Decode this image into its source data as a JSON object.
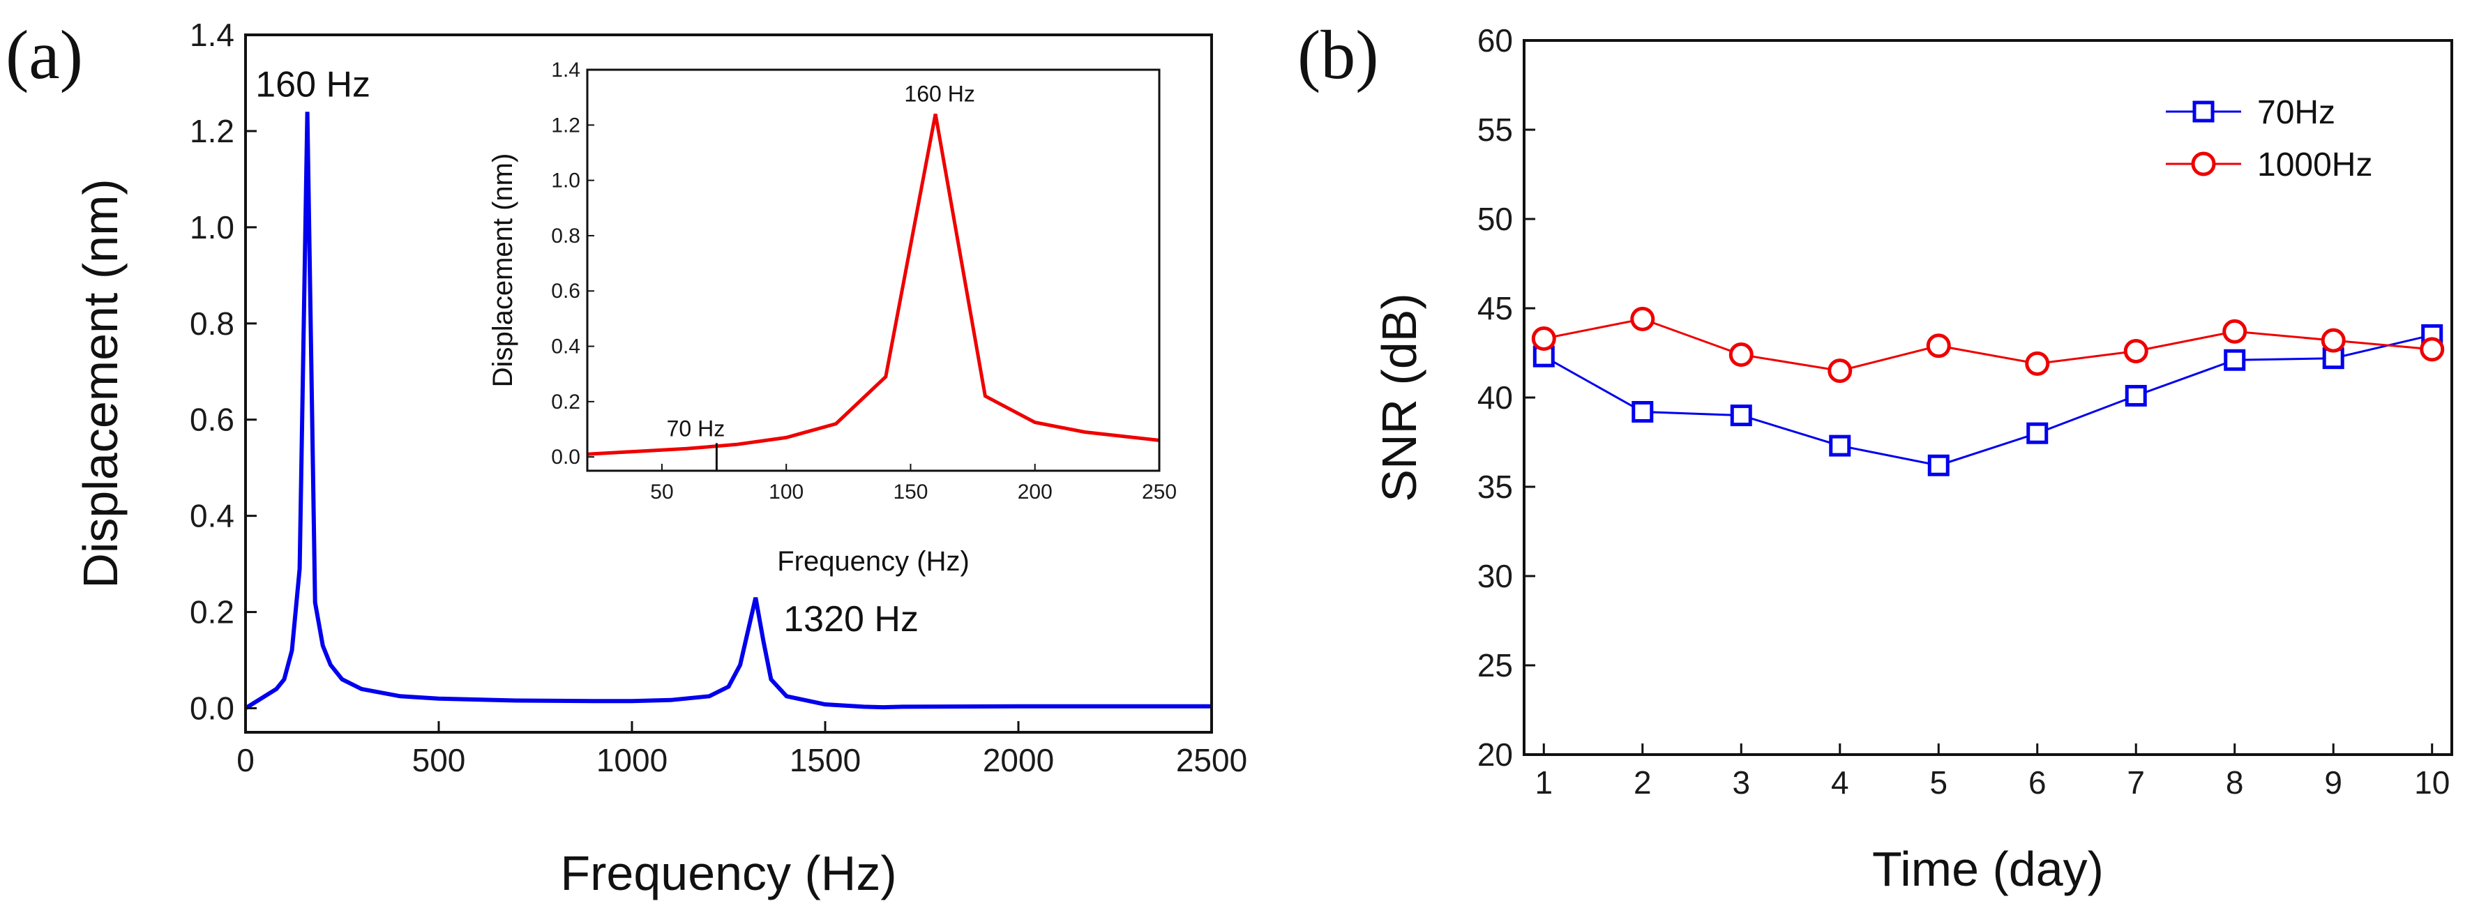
{
  "chart_data": [
    {
      "type": "line",
      "panel_label": "(a)",
      "xlabel": "Frequency (Hz)",
      "ylabel": "Displacement (nm)",
      "xlim": [
        0,
        2500
      ],
      "ylim": [
        -0.05,
        1.4
      ],
      "xticks": [
        0,
        500,
        1000,
        1500,
        2000,
        2500
      ],
      "yticks": [
        0.0,
        0.2,
        0.4,
        0.6,
        0.8,
        1.0,
        1.2,
        1.4
      ],
      "xtick_labels": [
        "0",
        "500",
        "1000",
        "1500",
        "2000",
        "2500"
      ],
      "ytick_labels": [
        "0.0",
        "0.2",
        "0.4",
        "0.6",
        "0.8",
        "1.0",
        "1.2",
        "1.4"
      ],
      "annotations": [
        {
          "text": "160 Hz",
          "x": 160,
          "y": 1.24
        },
        {
          "text": "1320 Hz",
          "x": 1320,
          "y": 0.23
        }
      ],
      "series": [
        {
          "name": "Displacement",
          "color": "#0000ee",
          "x": [
            0,
            20,
            40,
            60,
            80,
            100,
            120,
            140,
            160,
            180,
            200,
            220,
            250,
            300,
            400,
            500,
            700,
            900,
            1000,
            1100,
            1200,
            1250,
            1280,
            1300,
            1320,
            1340,
            1360,
            1400,
            1500,
            1600,
            1650,
            1700,
            2000,
            2500
          ],
          "y": [
            0.0,
            0.01,
            0.02,
            0.03,
            0.04,
            0.06,
            0.12,
            0.29,
            1.24,
            0.22,
            0.13,
            0.09,
            0.06,
            0.04,
            0.025,
            0.02,
            0.016,
            0.015,
            0.015,
            0.017,
            0.025,
            0.045,
            0.09,
            0.16,
            0.23,
            0.14,
            0.06,
            0.025,
            0.008,
            0.003,
            0.002,
            0.003,
            0.004,
            0.004
          ]
        }
      ],
      "inset": {
        "type": "line",
        "xlabel": "Frequency (Hz)",
        "ylabel": "Displacement (nm)",
        "xlim": [
          20,
          250
        ],
        "ylim": [
          -0.05,
          1.4
        ],
        "xticks": [
          50,
          100,
          150,
          200,
          250
        ],
        "yticks": [
          0.0,
          0.2,
          0.4,
          0.6,
          0.8,
          1.0,
          1.2,
          1.4
        ],
        "xtick_labels": [
          "50",
          "100",
          "150",
          "200",
          "250"
        ],
        "ytick_labels": [
          "0.0",
          "0.2",
          "0.4",
          "0.6",
          "0.8",
          "1.0",
          "1.2",
          "1.4"
        ],
        "annotations": [
          {
            "text": "160 Hz",
            "x": 160,
            "y": 1.24
          },
          {
            "text": "70 Hz",
            "x": 72,
            "y": 0.04
          }
        ],
        "series": [
          {
            "name": "Displacement",
            "color": "#ee0000",
            "x": [
              20,
              40,
              60,
              80,
              100,
              120,
              140,
              160,
              180,
              200,
              220,
              250
            ],
            "y": [
              0.01,
              0.02,
              0.03,
              0.045,
              0.07,
              0.12,
              0.29,
              1.24,
              0.22,
              0.125,
              0.09,
              0.06
            ]
          }
        ]
      }
    },
    {
      "type": "line",
      "panel_label": "(b)",
      "xlabel": "Time (day)",
      "ylabel": "SNR (dB)",
      "xlim": [
        0.8,
        10.2
      ],
      "ylim": [
        20,
        60
      ],
      "xticks": [
        1,
        2,
        3,
        4,
        5,
        6,
        7,
        8,
        9,
        10
      ],
      "yticks": [
        20,
        25,
        30,
        35,
        40,
        45,
        50,
        55,
        60
      ],
      "xtick_labels": [
        "1",
        "2",
        "3",
        "4",
        "5",
        "6",
        "7",
        "8",
        "9",
        "10"
      ],
      "ytick_labels": [
        "20",
        "25",
        "30",
        "35",
        "40",
        "45",
        "50",
        "55",
        "60"
      ],
      "legend_position": "top-right",
      "series": [
        {
          "name": "70Hz",
          "marker": "square",
          "color": "#0000ee",
          "x": [
            1,
            2,
            3,
            4,
            5,
            6,
            7,
            8,
            9,
            10
          ],
          "y": [
            42.3,
            39.2,
            39.0,
            37.3,
            36.2,
            38.0,
            40.1,
            42.1,
            42.2,
            43.5
          ]
        },
        {
          "name": "1000Hz",
          "marker": "circle",
          "color": "#ee0000",
          "x": [
            1,
            2,
            3,
            4,
            5,
            6,
            7,
            8,
            9,
            10
          ],
          "y": [
            43.3,
            44.4,
            42.4,
            41.5,
            42.9,
            41.9,
            42.6,
            43.7,
            43.2,
            42.7
          ]
        }
      ]
    }
  ]
}
